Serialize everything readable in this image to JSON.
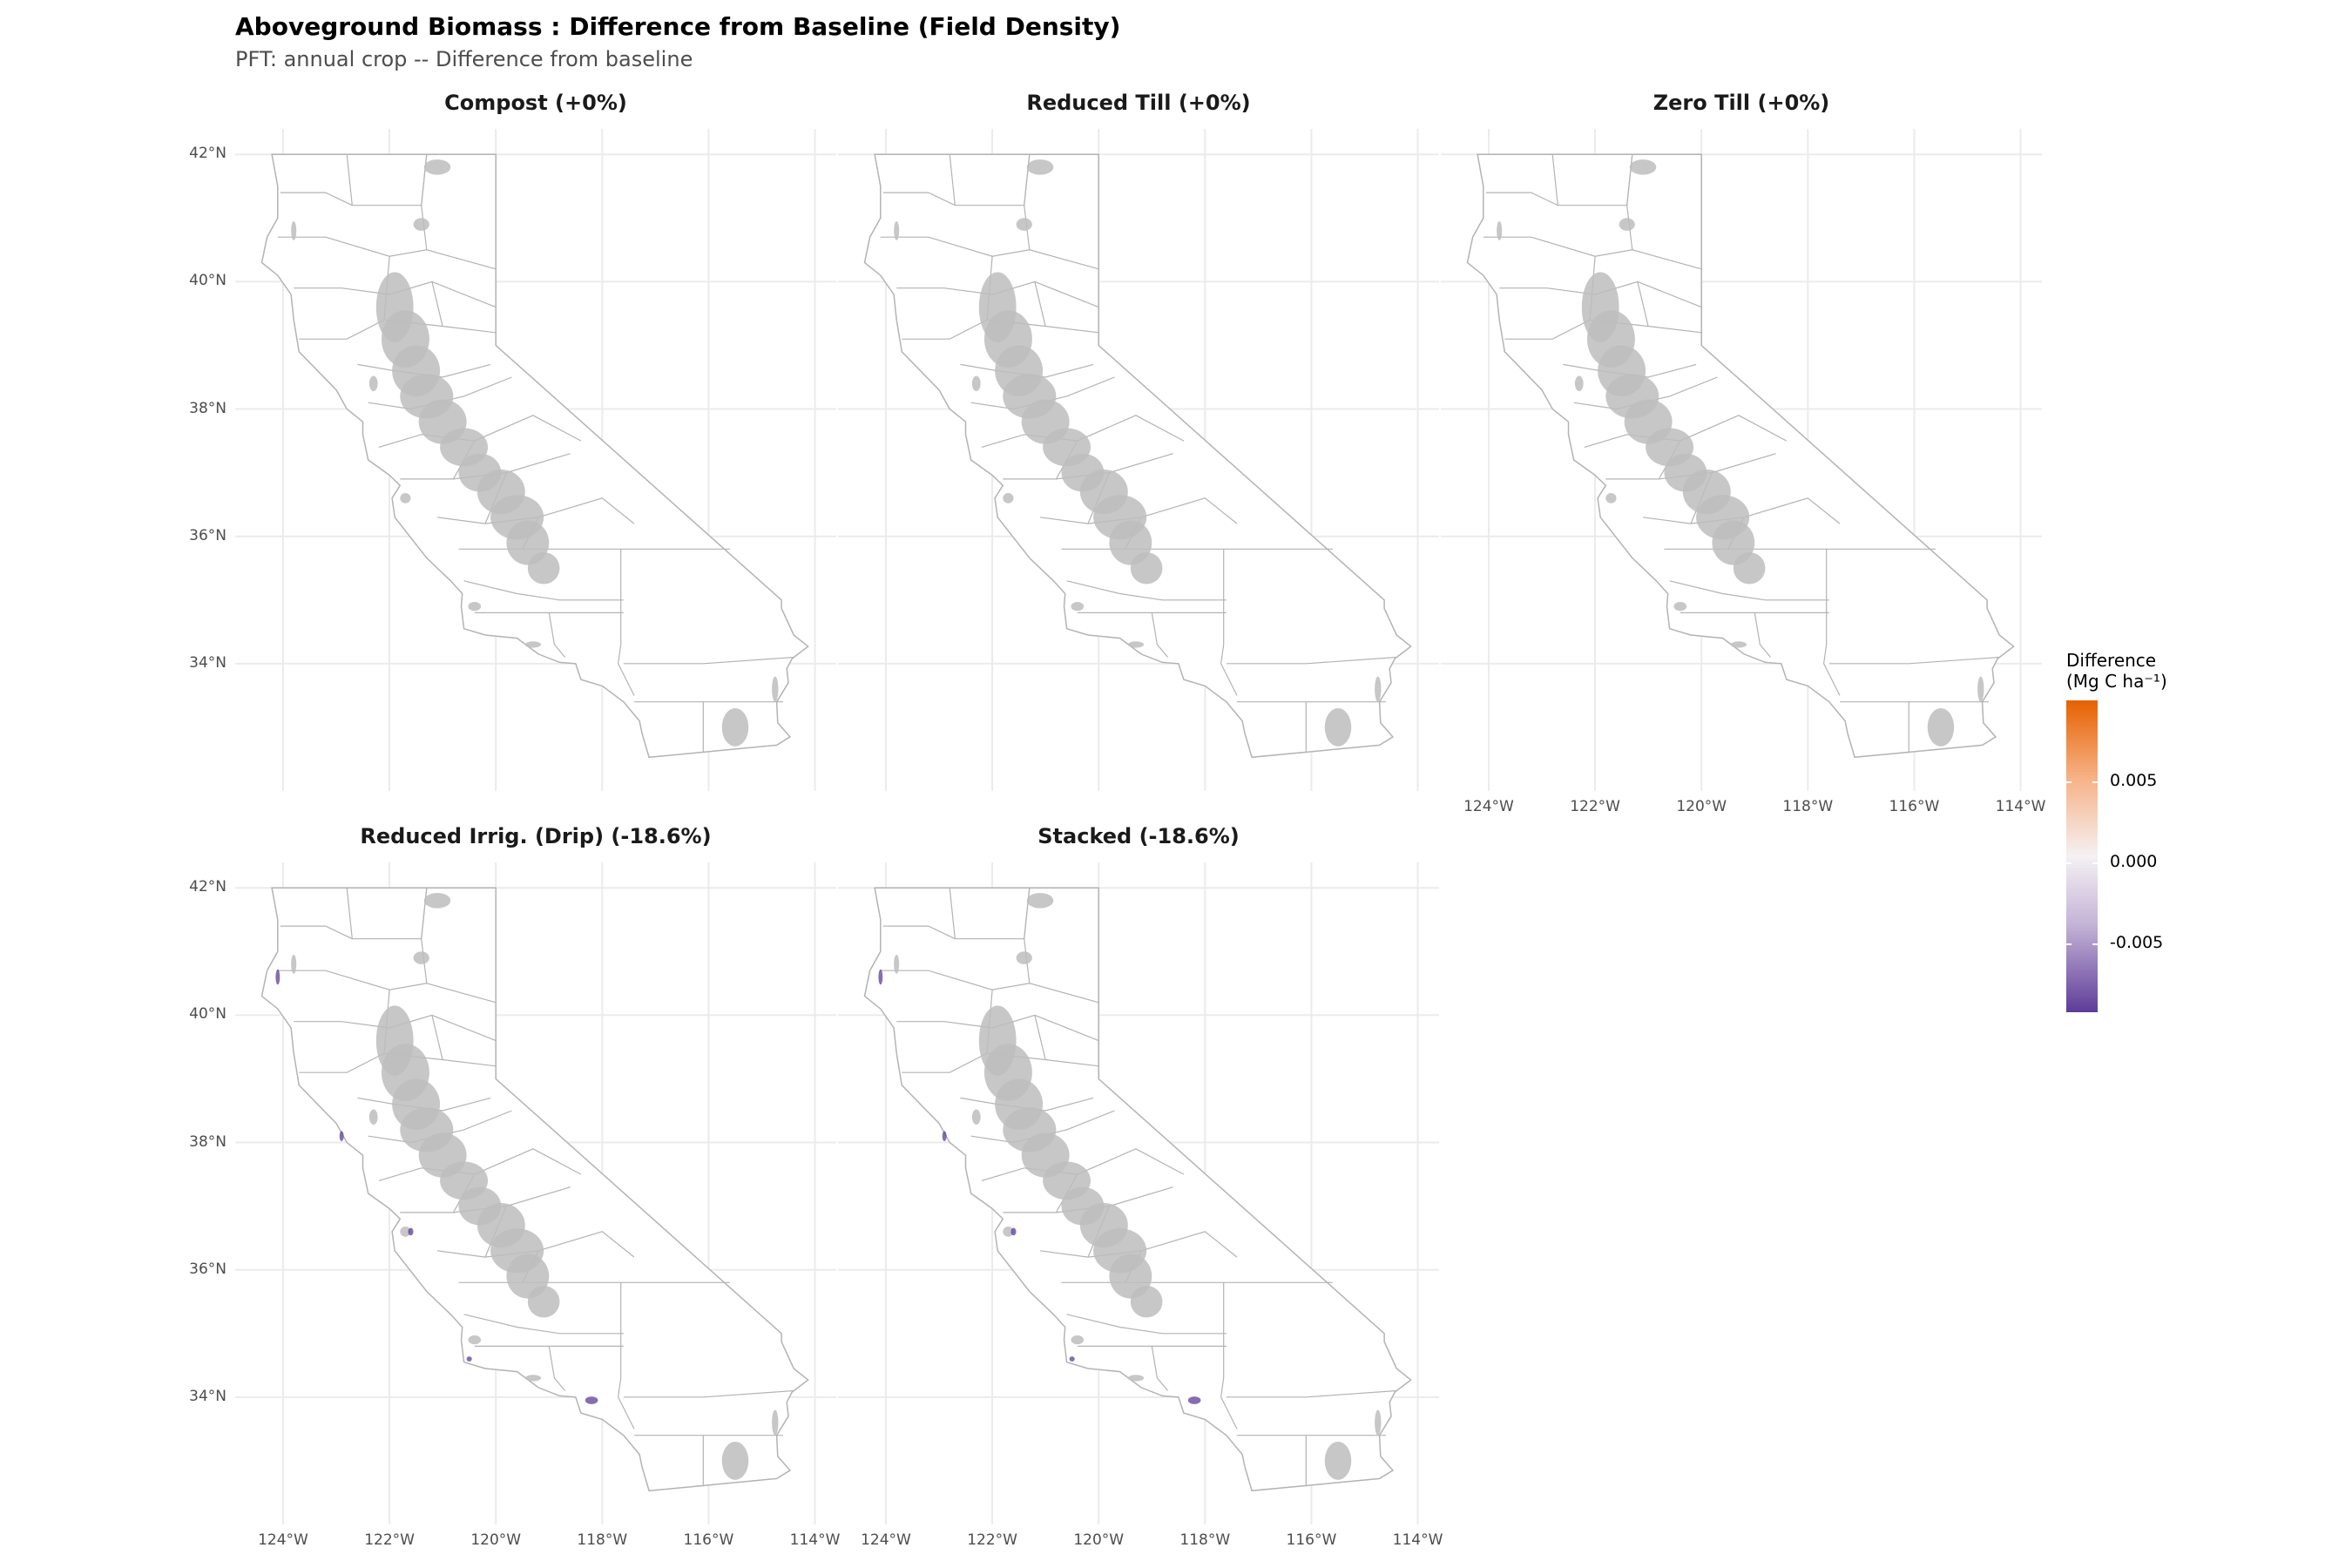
{
  "title": "Aboveground Biomass : Difference from Baseline (Field Density)",
  "subtitle": "PFT: annual crop  -- Difference from baseline",
  "panels": [
    {
      "label": "Compost (+0%)",
      "mean_change_pct": 0
    },
    {
      "label": "Reduced Till (+0%)",
      "mean_change_pct": 0
    },
    {
      "label": "Zero Till (+0%)",
      "mean_change_pct": 0
    },
    {
      "label": "Reduced Irrig. (Drip) (-18.6%)",
      "mean_change_pct": -18.6
    },
    {
      "label": "Stacked (-18.6%)",
      "mean_change_pct": -18.6
    }
  ],
  "axes": {
    "x_ticks": [
      "124°W",
      "122°W",
      "120°W",
      "118°W",
      "116°W",
      "114°W"
    ],
    "y_ticks": [
      "42°N",
      "40°N",
      "38°N",
      "36°N",
      "34°N"
    ]
  },
  "legend": {
    "title_line1": "Difference",
    "title_line2": "(Mg C ha⁻¹)",
    "ticks": [
      "0.005",
      "0.000",
      "-0.005"
    ],
    "color_high": "#e66101",
    "color_mid": "#f7f7f7",
    "color_low": "#5e3c99"
  },
  "map_colors": {
    "no_change_fill": "#bdbdbd",
    "decrease_fill": "#5e3c99",
    "boundary_stroke": "#b3b3b3",
    "grid": "#ebebeb"
  }
}
